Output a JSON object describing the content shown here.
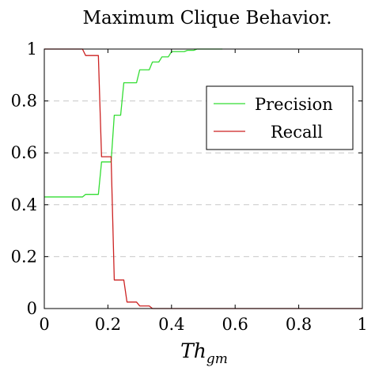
{
  "chart_data": {
    "type": "line",
    "title": "Maximum Clique Behavior.",
    "xlabel": "Th",
    "xlabel_subscript": "gm",
    "ylabel": "",
    "xlim": [
      0,
      1
    ],
    "ylim": [
      0,
      1
    ],
    "x_ticks": [
      0,
      0.2,
      0.4,
      0.6,
      0.8,
      1
    ],
    "x_tick_labels": [
      "0",
      "0.2",
      "0.4",
      "0.6",
      "0.8",
      "1"
    ],
    "y_ticks": [
      0,
      0.2,
      0.4,
      0.6,
      0.8,
      1
    ],
    "y_tick_labels": [
      "0",
      "0.2",
      "0.4",
      "0.6",
      "0.8",
      "1"
    ],
    "grid": "horizontal dashed",
    "legend_position": "top-right",
    "series": [
      {
        "name": "Precision",
        "color": "#33dd33",
        "x": [
          0,
          0.04,
          0.08,
          0.12,
          0.13,
          0.17,
          0.18,
          0.21,
          0.22,
          0.24,
          0.25,
          0.29,
          0.3,
          0.33,
          0.34,
          0.36,
          0.37,
          0.39,
          0.4,
          0.44,
          0.45,
          0.47,
          0.48,
          0.5,
          0.52,
          0.56
        ],
        "y": [
          0.43,
          0.43,
          0.43,
          0.43,
          0.44,
          0.44,
          0.565,
          0.565,
          0.745,
          0.745,
          0.87,
          0.87,
          0.92,
          0.92,
          0.95,
          0.95,
          0.97,
          0.97,
          0.99,
          0.99,
          0.995,
          0.995,
          1.0,
          1.0,
          1.0,
          1.0
        ]
      },
      {
        "name": "Recall",
        "color": "#cc2222",
        "x": [
          0,
          0.12,
          0.13,
          0.17,
          0.18,
          0.21,
          0.22,
          0.25,
          0.26,
          0.29,
          0.3,
          0.33,
          0.34,
          0.36,
          0.4,
          0.5,
          1.0
        ],
        "y": [
          1.0,
          1.0,
          0.975,
          0.975,
          0.585,
          0.585,
          0.11,
          0.11,
          0.025,
          0.025,
          0.01,
          0.01,
          0.0,
          0.0,
          0.0,
          0.0,
          0.0
        ]
      }
    ]
  }
}
